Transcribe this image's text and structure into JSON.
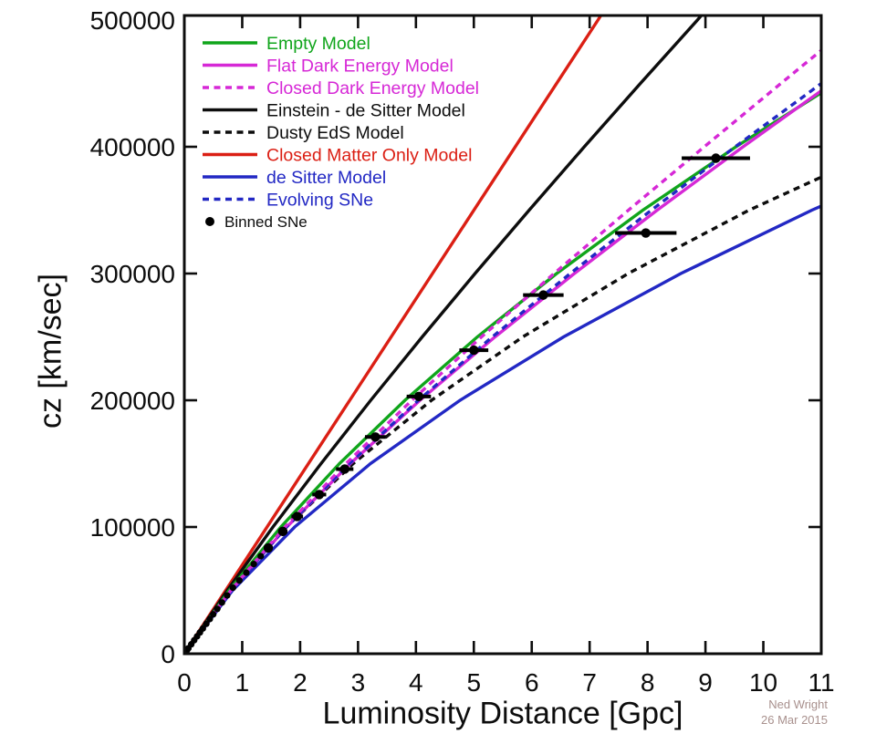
{
  "credit": {
    "line1": "Ned Wright",
    "line2": "26 Mar 2015",
    "color": "#a8908d"
  },
  "chart_data": {
    "type": "line",
    "title": "",
    "xlabel": "Luminosity Distance [Gpc]",
    "ylabel": "cz [km/sec]",
    "xlim": [
      0,
      11
    ],
    "ylim": [
      0,
      500000
    ],
    "grid": false,
    "legend_position": "top-left",
    "x_ticks": [
      0,
      1,
      2,
      3,
      4,
      5,
      6,
      7,
      8,
      9,
      10,
      11
    ],
    "y_ticks": [
      0,
      100000,
      200000,
      300000,
      400000,
      500000
    ],
    "series": [
      {
        "name": "Empty Model",
        "slug": "empty-model",
        "color": "#10a51b",
        "dash": "solid",
        "points": [
          [
            0,
            0
          ],
          [
            0.774,
            50000
          ],
          [
            1.667,
            100000
          ],
          [
            2.679,
            150000
          ],
          [
            3.81,
            200000
          ],
          [
            5.061,
            250000
          ],
          [
            6.43,
            300000
          ],
          [
            7.919,
            350000
          ],
          [
            9.527,
            400000
          ],
          [
            11.253,
            450000
          ],
          [
            13.099,
            500000
          ]
        ]
      },
      {
        "name": "Flat Dark Energy Model",
        "slug": "flat-dark-energy-model",
        "color": "#d628d6",
        "dash": "solid",
        "points": [
          [
            0,
            0
          ],
          [
            0.804,
            50000
          ],
          [
            1.768,
            100000
          ],
          [
            2.865,
            150000
          ],
          [
            4.071,
            200000
          ],
          [
            5.366,
            250000
          ],
          [
            6.735,
            300000
          ],
          [
            8.166,
            350000
          ],
          [
            9.649,
            400000
          ],
          [
            11.177,
            450000
          ],
          [
            12.743,
            500000
          ]
        ]
      },
      {
        "name": "Closed Dark Energy Model",
        "slug": "closed-dark-energy-model",
        "color": "#d628d6",
        "dash": "dashed",
        "points": [
          [
            0,
            0
          ],
          [
            0.797,
            50000
          ],
          [
            1.738,
            100000
          ],
          [
            2.791,
            150000
          ],
          [
            3.93,
            200000
          ],
          [
            5.133,
            250000
          ],
          [
            6.385,
            300000
          ],
          [
            7.67,
            350000
          ],
          [
            8.979,
            400000
          ],
          [
            10.304,
            450000
          ],
          [
            11.638,
            500000
          ]
        ]
      },
      {
        "name": "Einstein - de Sitter Model",
        "slug": "einstein-de-sitter-model",
        "color": "#0d0d0d",
        "dash": "solid",
        "points": [
          [
            0,
            0
          ],
          [
            0.742,
            50000
          ],
          [
            1.531,
            100000
          ],
          [
            2.36,
            150000
          ],
          [
            3.22,
            200000
          ],
          [
            4.109,
            250000
          ],
          [
            5.021,
            300000
          ],
          [
            5.955,
            350000
          ],
          [
            6.907,
            400000
          ],
          [
            7.877,
            450000
          ],
          [
            8.861,
            500000
          ],
          [
            8.945,
            504500
          ]
        ]
      },
      {
        "name": "Dusty EdS Model",
        "slug": "dusty-eds-model",
        "color": "#0d0d0d",
        "dash": "dashed",
        "points": [
          [
            0,
            0
          ],
          [
            0.796,
            50000
          ],
          [
            1.763,
            100000
          ],
          [
            2.915,
            150000
          ],
          [
            4.269,
            200000
          ],
          [
            5.845,
            250000
          ],
          [
            7.665,
            300000
          ],
          [
            9.754,
            350000
          ],
          [
            12.142,
            400000
          ]
        ]
      },
      {
        "name": "Closed Matter Only Model",
        "slug": "closed-matter-only-model",
        "color": "#db1f14",
        "dash": "solid",
        "points": [
          [
            0,
            0
          ],
          [
            7.143,
            500000
          ],
          [
            7.206,
            504500
          ]
        ]
      },
      {
        "name": "de Sitter Model",
        "slug": "de-sitter-model",
        "color": "#2228c4",
        "dash": "solid",
        "points": [
          [
            0,
            0
          ],
          [
            0.833,
            50000
          ],
          [
            1.905,
            100000
          ],
          [
            3.215,
            150000
          ],
          [
            4.763,
            200000
          ],
          [
            6.55,
            250000
          ],
          [
            8.574,
            300000
          ],
          [
            10.837,
            350000
          ],
          [
            13.338,
            400000
          ]
        ]
      },
      {
        "name": "Evolving SNe",
        "slug": "evolving-sne",
        "color": "#2228c4",
        "dash": "dashed",
        "points": [
          [
            0,
            0
          ],
          [
            0.803,
            50000
          ],
          [
            1.762,
            100000
          ],
          [
            2.85,
            150000
          ],
          [
            4.043,
            200000
          ],
          [
            5.319,
            250000
          ],
          [
            6.664,
            300000
          ],
          [
            8.066,
            350000
          ],
          [
            9.514,
            400000
          ],
          [
            11.001,
            450000
          ],
          [
            12.52,
            500000
          ]
        ]
      }
    ],
    "scatter": {
      "name": "Binned SNe",
      "color": "#000000",
      "points_note": "[distance_Gpc, cz_km_s, x_error_Gpc]",
      "points": [
        [
          0.03,
          1900,
          0
        ],
        [
          0.05,
          3100,
          0
        ],
        [
          0.07,
          4350,
          0
        ],
        [
          0.12,
          7450,
          0
        ],
        [
          0.17,
          10600,
          0
        ],
        [
          0.22,
          13700,
          0
        ],
        [
          0.27,
          16800,
          0
        ],
        [
          0.32,
          19900,
          0
        ],
        [
          0.38,
          23600,
          0
        ],
        [
          0.44,
          27400,
          0
        ],
        [
          0.5,
          31100,
          0
        ],
        [
          0.57,
          35400,
          0
        ],
        [
          0.65,
          40400,
          0
        ],
        [
          0.74,
          46000,
          0
        ],
        [
          0.84,
          52100,
          0
        ],
        [
          0.95,
          57800,
          0
        ],
        [
          1.07,
          64000,
          0
        ],
        [
          1.2,
          70800,
          0
        ],
        [
          1.32,
          77000,
          0
        ],
        [
          1.45,
          83500,
          0.06
        ],
        [
          1.7,
          96500,
          0.08
        ],
        [
          1.95,
          108300,
          0.1
        ],
        [
          2.33,
          125600,
          0.12
        ],
        [
          2.77,
          145700,
          0.15
        ],
        [
          3.3,
          171000,
          0.18
        ],
        [
          4.05,
          203000,
          0.21
        ],
        [
          5.0,
          239500,
          0.25
        ],
        [
          6.2,
          283000,
          0.35
        ],
        [
          7.97,
          332000,
          0.53
        ],
        [
          9.18,
          391000,
          0.59
        ]
      ]
    }
  }
}
